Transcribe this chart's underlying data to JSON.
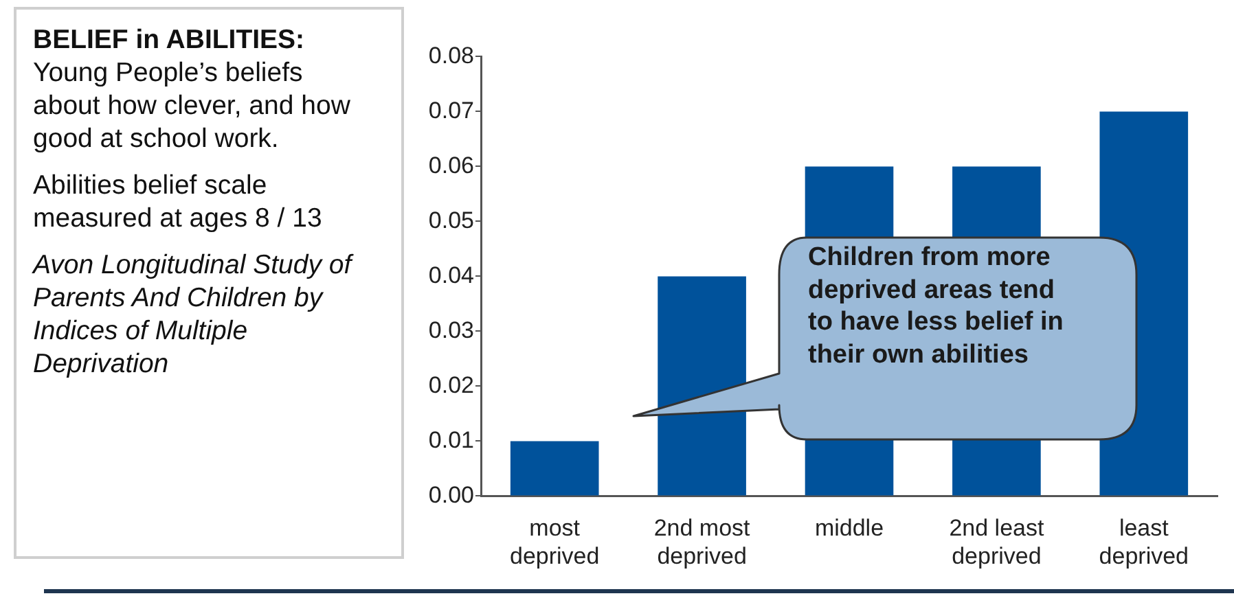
{
  "chart_data": {
    "type": "bar",
    "title": "BELIEF in ABILITIES:",
    "subtitle": "Young People’s beliefs about how clever, and how good at school work.",
    "categories": [
      "most deprived",
      "2nd most deprived",
      "middle",
      "2nd least deprived",
      "least deprived"
    ],
    "values": [
      0.01,
      0.04,
      0.06,
      0.06,
      0.07
    ],
    "color": "#00529b",
    "ylim": [
      0,
      0.08
    ],
    "yticks": [
      {
        "value": 0,
        "label": "0.00"
      },
      0.01,
      0.02,
      0.03,
      0.04,
      0.05,
      0.06,
      0.07,
      0.08
    ],
    "annotations": [
      "Abilities belief scale  measured at ages 8 / 13",
      "Avon Longitudinal Study of Parents And Children by Indices of Multiple Deprivation",
      "Children from more deprived areas tend to have less belief in their own abilities"
    ]
  }
}
